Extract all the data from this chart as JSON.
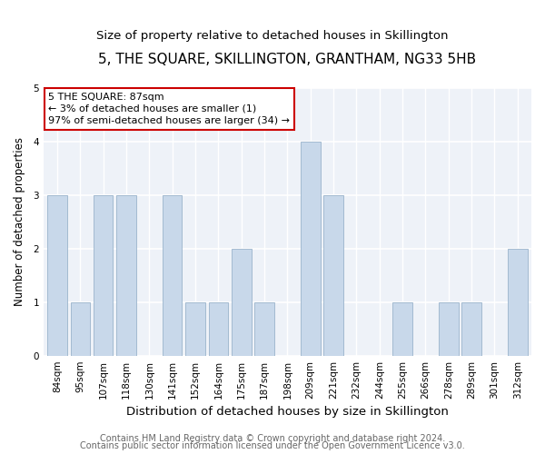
{
  "title": "5, THE SQUARE, SKILLINGTON, GRANTHAM, NG33 5HB",
  "subtitle": "Size of property relative to detached houses in Skillington",
  "xlabel": "Distribution of detached houses by size in Skillington",
  "ylabel": "Number of detached properties",
  "categories": [
    "84sqm",
    "95sqm",
    "107sqm",
    "118sqm",
    "130sqm",
    "141sqm",
    "152sqm",
    "164sqm",
    "175sqm",
    "187sqm",
    "198sqm",
    "209sqm",
    "221sqm",
    "232sqm",
    "244sqm",
    "255sqm",
    "266sqm",
    "278sqm",
    "289sqm",
    "301sqm",
    "312sqm"
  ],
  "values": [
    3,
    1,
    3,
    3,
    0,
    3,
    1,
    1,
    2,
    1,
    0,
    4,
    3,
    0,
    0,
    1,
    0,
    1,
    1,
    0,
    2
  ],
  "bar_color": "#c8d8ea",
  "bar_edge_color": "#9ab4cc",
  "annotation_box_text": "5 THE SQUARE: 87sqm\n← 3% of detached houses are smaller (1)\n97% of semi-detached houses are larger (34) →",
  "annotation_box_color": "#ffffff",
  "annotation_box_edge_color": "#cc0000",
  "ylim": [
    0,
    5
  ],
  "yticks": [
    0,
    1,
    2,
    3,
    4,
    5
  ],
  "background_color": "#eef2f8",
  "footer_line1": "Contains HM Land Registry data © Crown copyright and database right 2024.",
  "footer_line2": "Contains public sector information licensed under the Open Government Licence v3.0.",
  "title_fontsize": 11,
  "subtitle_fontsize": 9.5,
  "xlabel_fontsize": 9.5,
  "ylabel_fontsize": 8.5,
  "tick_fontsize": 7.5,
  "annotation_fontsize": 8,
  "footer_fontsize": 7
}
